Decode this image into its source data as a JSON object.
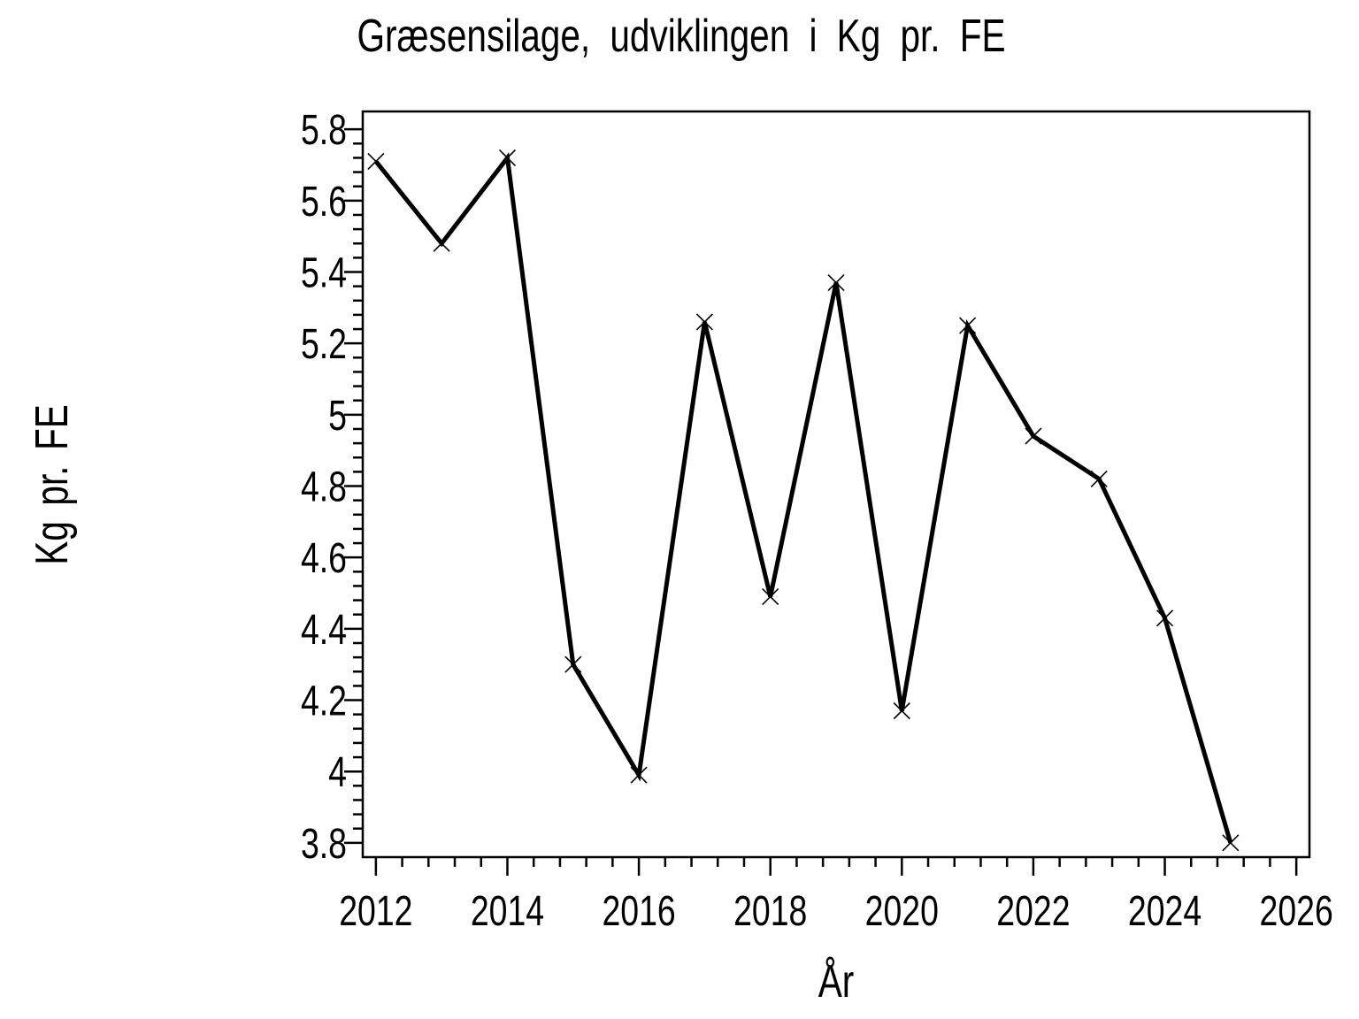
{
  "title": "Græsensilage, udviklingen i Kg pr. FE",
  "chart_data": {
    "type": "line",
    "title": "Græsensilage, udviklingen i Kg pr. FE",
    "xlabel": "År",
    "ylabel": "Kg pr. FE",
    "x": [
      2012,
      2013,
      2014,
      2015,
      2016,
      2017,
      2018,
      2019,
      2020,
      2021,
      2022,
      2023,
      2024,
      2025
    ],
    "values": [
      5.71,
      5.48,
      5.72,
      4.3,
      3.99,
      5.26,
      4.49,
      5.37,
      4.17,
      5.25,
      4.94,
      4.82,
      4.43,
      3.8
    ],
    "xlim": [
      2011.8,
      2026.2
    ],
    "ylim": [
      3.76,
      5.85
    ],
    "x_axis": {
      "major_start": 2012,
      "major_step": 2,
      "major_count": 8,
      "minor_step": 0.4,
      "minor_per_major": 5,
      "labels": [
        "2012",
        "2014",
        "2016",
        "2018",
        "2020",
        "2022",
        "2024",
        "2026"
      ]
    },
    "y_axis": {
      "major_start": 3.8,
      "major_step": 0.2,
      "major_count": 11,
      "minor_step": 0.04,
      "minor_per_major": 5,
      "labels": [
        "3.8",
        "4",
        "4.2",
        "4.4",
        "4.6",
        "4.8",
        "5",
        "5.2",
        "5.4",
        "5.6",
        "5.8"
      ]
    },
    "marker": "x-cross",
    "line_color": "#000000",
    "axis_color": "#000000",
    "background": "#ffffff",
    "grid": false,
    "legend": "none"
  }
}
